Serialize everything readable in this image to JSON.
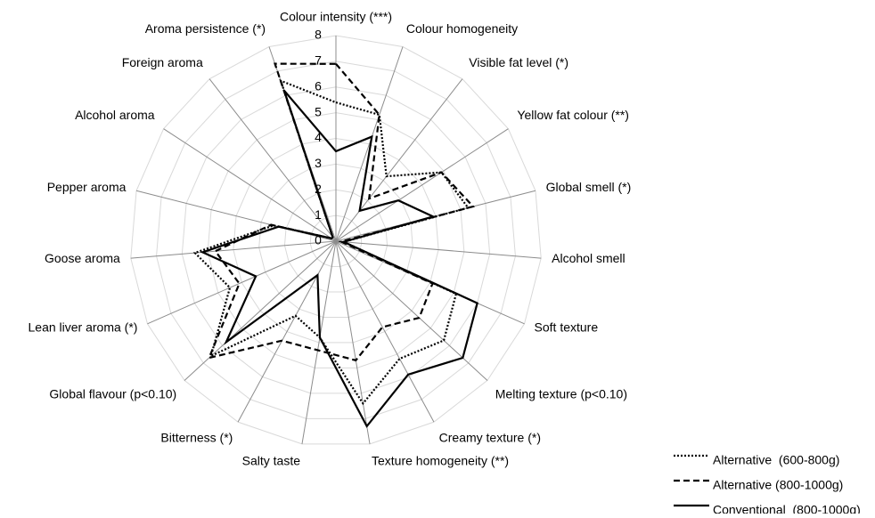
{
  "chart_data": {
    "type": "radar",
    "categories": [
      "Colour intensity (***)",
      "Colour homogeneity",
      "Visible fat level (*)",
      "Yellow fat colour (**)",
      "Global smell (*)",
      "Alcohol smell",
      "Soft texture",
      "Melting texture (p<0.10)",
      "Creamy texture (*)",
      "Texture homogeneity (**)",
      "Salty taste",
      "Bitterness (*)",
      "Global flavour (p<0.10)",
      "Lean liver aroma (*)",
      "Goose aroma",
      "Pepper aroma",
      "Alcohol aroma",
      "Foreign aroma",
      "Aroma persistence (*)"
    ],
    "ylim": [
      0,
      8
    ],
    "yticks": [
      0,
      1,
      2,
      3,
      4,
      5,
      6,
      7,
      8
    ],
    "grid": true,
    "legend": "bottom-right",
    "series": [
      {
        "name": "Alternative  (600-800g)",
        "color": "#000000",
        "dash": "dotted",
        "values": [
          5.4,
          5.2,
          3.2,
          4.9,
          5.3,
          0.3,
          5.1,
          5.7,
          5.2,
          6.4,
          3.8,
          3.3,
          6.6,
          4.5,
          5.5,
          2.5,
          0.2,
          0.2,
          6.6
        ]
      },
      {
        "name": "Alternative (800-1000g)",
        "color": "#000000",
        "dash": "dashed",
        "values": [
          6.9,
          5.2,
          2.1,
          4.9,
          5.5,
          0.2,
          4.1,
          4.4,
          3.8,
          4.7,
          4.3,
          4.4,
          6.7,
          4.1,
          4.7,
          2.6,
          0.2,
          0.2,
          7.3
        ]
      },
      {
        "name": "Conventional  (800-1000g)",
        "color": "#000000",
        "dash": "solid",
        "values": [
          3.5,
          4.3,
          1.5,
          2.9,
          3.9,
          0.3,
          6.0,
          6.7,
          5.9,
          7.3,
          3.8,
          1.5,
          5.8,
          3.4,
          5.2,
          2.3,
          0.2,
          0.2,
          6.2
        ]
      }
    ]
  }
}
